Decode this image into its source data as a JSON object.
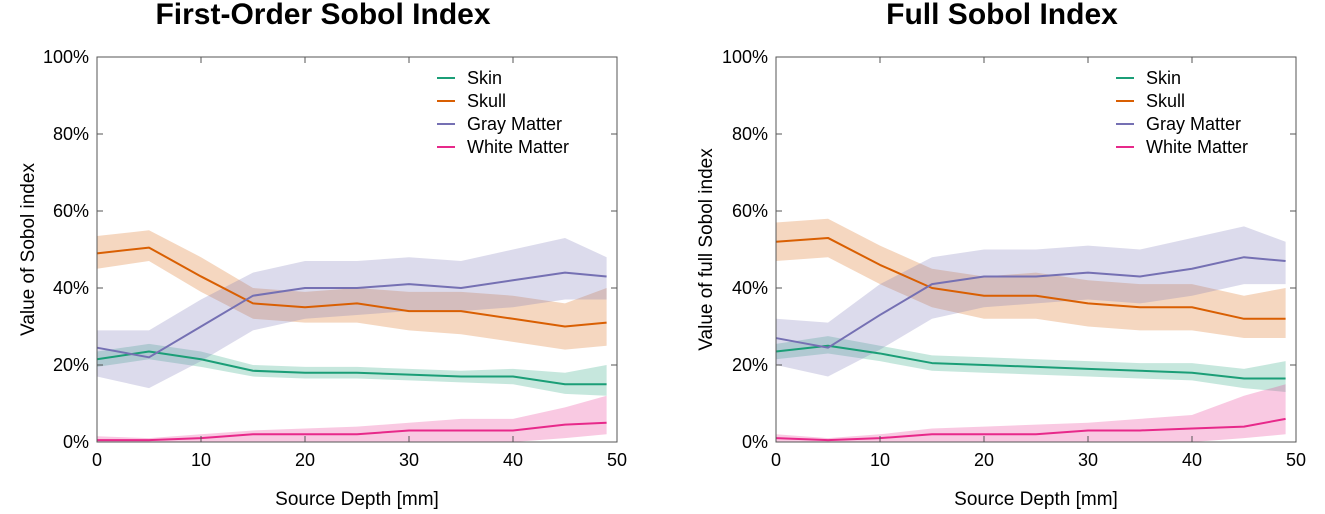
{
  "chart_data": [
    {
      "type": "line",
      "title": "First-Order Sobol Index",
      "xlabel": "Source Depth [mm]",
      "ylabel": "Value of Sobol index",
      "xlim": [
        0,
        50
      ],
      "ylim": [
        0,
        100
      ],
      "xticks": [
        "0",
        "10",
        "20",
        "30",
        "40",
        "50"
      ],
      "yticks": [
        "0%",
        "20%",
        "40%",
        "60%",
        "80%",
        "100%"
      ],
      "legend_position": "top-right",
      "x": [
        0,
        5,
        10,
        15,
        20,
        25,
        30,
        35,
        40,
        45,
        49
      ],
      "series": [
        {
          "name": "Skin",
          "color": "#1b9e77",
          "values": [
            21.5,
            23.5,
            21.5,
            18.5,
            18,
            18,
            17.5,
            17,
            17,
            15,
            15
          ],
          "lower": [
            19.5,
            21.5,
            19.5,
            17,
            16.5,
            16.5,
            16,
            15.5,
            15,
            12.5,
            12
          ],
          "upper": [
            23.5,
            25.5,
            23.5,
            20,
            19.5,
            19.5,
            19,
            18.5,
            19,
            18,
            20
          ]
        },
        {
          "name": "Skull",
          "color": "#d95f02",
          "values": [
            49,
            50.5,
            43,
            36,
            35,
            36,
            34,
            34,
            32,
            30,
            31
          ],
          "lower": [
            45,
            47,
            39,
            32,
            31,
            31,
            29,
            28,
            26,
            24,
            25
          ],
          "upper": [
            53.5,
            55,
            48,
            40,
            39,
            40,
            39,
            39,
            38,
            36,
            40
          ]
        },
        {
          "name": "Gray Matter",
          "color": "#7570b3",
          "values": [
            24.5,
            22,
            30,
            38,
            40,
            40,
            41,
            40,
            42,
            44,
            43
          ],
          "lower": [
            17,
            14,
            21,
            29,
            32,
            33,
            34,
            34,
            35,
            37,
            37
          ],
          "upper": [
            29,
            29,
            37,
            44,
            47,
            47,
            48,
            47,
            50,
            53,
            48
          ]
        },
        {
          "name": "White Matter",
          "color": "#e7298a",
          "values": [
            0.5,
            0.5,
            1,
            2,
            2,
            2,
            3,
            3,
            3,
            4.5,
            5
          ],
          "lower": [
            0,
            0,
            0,
            0,
            0,
            0,
            0,
            0,
            0,
            1,
            2
          ],
          "upper": [
            1.5,
            1,
            2,
            3,
            3.5,
            4,
            5,
            6,
            6,
            9,
            12
          ]
        }
      ]
    },
    {
      "type": "line",
      "title": "Full Sobol Index",
      "xlabel": "Source Depth [mm]",
      "ylabel": "Value of full Sobol index",
      "xlim": [
        0,
        50
      ],
      "ylim": [
        0,
        100
      ],
      "xticks": [
        "0",
        "10",
        "20",
        "30",
        "40",
        "50"
      ],
      "yticks": [
        "0%",
        "20%",
        "40%",
        "60%",
        "80%",
        "100%"
      ],
      "legend_position": "top-right",
      "x": [
        0,
        5,
        10,
        15,
        20,
        25,
        30,
        35,
        40,
        45,
        49
      ],
      "series": [
        {
          "name": "Skin",
          "color": "#1b9e77",
          "values": [
            23.5,
            25,
            23,
            20.5,
            20,
            19.5,
            19,
            18.5,
            18,
            16.5,
            16.5
          ],
          "lower": [
            21.5,
            23,
            21,
            18.5,
            18,
            17.5,
            17,
            16.5,
            16,
            14,
            13
          ],
          "upper": [
            25.5,
            27.5,
            25,
            22.5,
            22,
            21.5,
            21,
            20.5,
            20.5,
            19,
            21
          ]
        },
        {
          "name": "Skull",
          "color": "#d95f02",
          "values": [
            52,
            53,
            46,
            40,
            38,
            38,
            36,
            35,
            35,
            32,
            32
          ],
          "lower": [
            47,
            48,
            41,
            35,
            32,
            32,
            30,
            29,
            29,
            27,
            27
          ],
          "upper": [
            57,
            58,
            51,
            45,
            43,
            44,
            42,
            41,
            41,
            38,
            40
          ]
        },
        {
          "name": "Gray Matter",
          "color": "#7570b3",
          "values": [
            27,
            24.5,
            33,
            41,
            43,
            43,
            44,
            43,
            45,
            48,
            47
          ],
          "lower": [
            20,
            17,
            24,
            32,
            35,
            36,
            37,
            36,
            38,
            41,
            41
          ],
          "upper": [
            32,
            31,
            41,
            48,
            50,
            50,
            51,
            50,
            53,
            56,
            52
          ]
        },
        {
          "name": "White Matter",
          "color": "#e7298a",
          "values": [
            1,
            0.5,
            1,
            2,
            2,
            2,
            3,
            3,
            3.5,
            4,
            6
          ],
          "lower": [
            0,
            0,
            0,
            0,
            0,
            0,
            0,
            0,
            0,
            1,
            2
          ],
          "upper": [
            2,
            1,
            2,
            3.5,
            4,
            4.5,
            5,
            6,
            7,
            12,
            15
          ]
        }
      ]
    }
  ]
}
